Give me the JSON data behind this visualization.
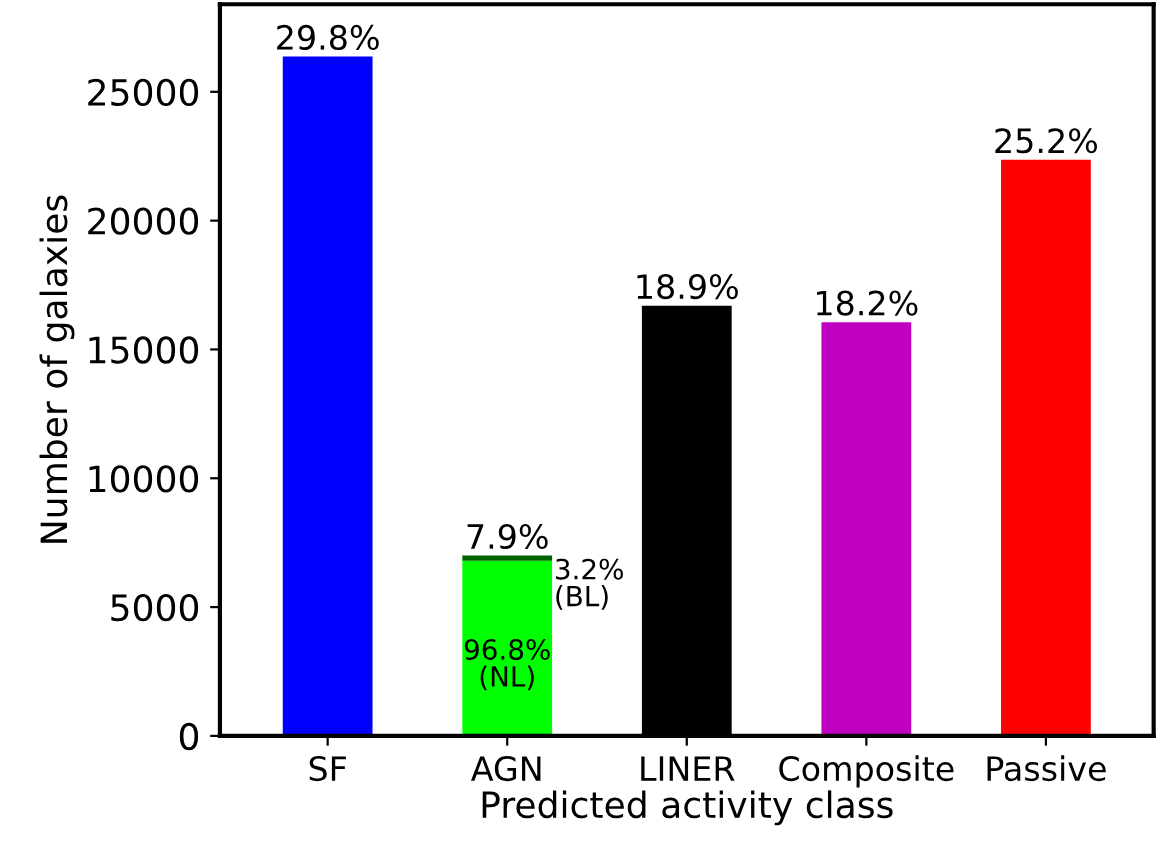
{
  "chart_data": {
    "type": "bar",
    "stacked": true,
    "xlabel": "Predicted activity class",
    "ylabel": "Number of galaxies",
    "categories": [
      "SF",
      "AGN",
      "LINER",
      "Composite",
      "Passive"
    ],
    "series": [
      {
        "colors": [
          "#0000ff",
          "#00ff00",
          "#000000",
          "#c000c0",
          "#ff0000"
        ],
        "values": [
          26370,
          6800,
          16700,
          16060,
          22360
        ]
      },
      {
        "color": "#006400",
        "values": [
          null,
          200,
          null,
          null,
          null
        ]
      }
    ],
    "annotations": [
      {
        "text": "29.8%",
        "x": "SF",
        "y": 26370
      },
      {
        "text": "7.9%",
        "x": "AGN",
        "y": 7000
      },
      {
        "text": "96.8%\n(NL)",
        "x": "AGN",
        "y": 6800
      },
      {
        "text": "3.2%\n(BL)",
        "x": "AGN",
        "y": 6900
      },
      {
        "text": "18.9%",
        "x": "LINER",
        "y": 16700
      },
      {
        "text": "18.2%",
        "x": "Composite",
        "y": 16060
      },
      {
        "text": "25.2%",
        "x": "Passive",
        "y": 22360
      }
    ],
    "ylim": [
      0,
      28400
    ],
    "yticks": [
      0,
      5000,
      10000,
      15000,
      20000,
      25000
    ],
    "grid": false
  }
}
